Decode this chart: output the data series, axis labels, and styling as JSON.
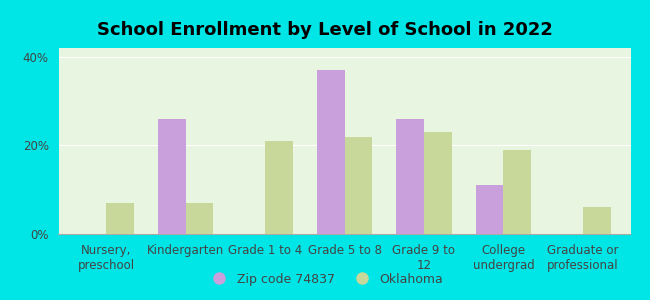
{
  "title": "School Enrollment by Level of School in 2022",
  "categories": [
    "Nursery,\npreschool",
    "Kindergarten",
    "Grade 1 to 4",
    "Grade 5 to 8",
    "Grade 9 to\n12",
    "College\nundergrad",
    "Graduate or\nprofessional"
  ],
  "zip_values": [
    0,
    26,
    0,
    37,
    26,
    11,
    0
  ],
  "ok_values": [
    7,
    7,
    21,
    22,
    23,
    19,
    6
  ],
  "zip_color": "#c9a0dc",
  "ok_color": "#c8d89a",
  "background_outer": "#00e5e5",
  "background_plot": "#e8f5e0",
  "bar_width": 0.35,
  "ylim": [
    0,
    42
  ],
  "yticks": [
    0,
    20,
    40
  ],
  "ytick_labels": [
    "0%",
    "20%",
    "40%"
  ],
  "legend_zip_label": "Zip code 74837",
  "legend_ok_label": "Oklahoma",
  "title_fontsize": 13,
  "tick_fontsize": 8.5,
  "legend_fontsize": 9
}
